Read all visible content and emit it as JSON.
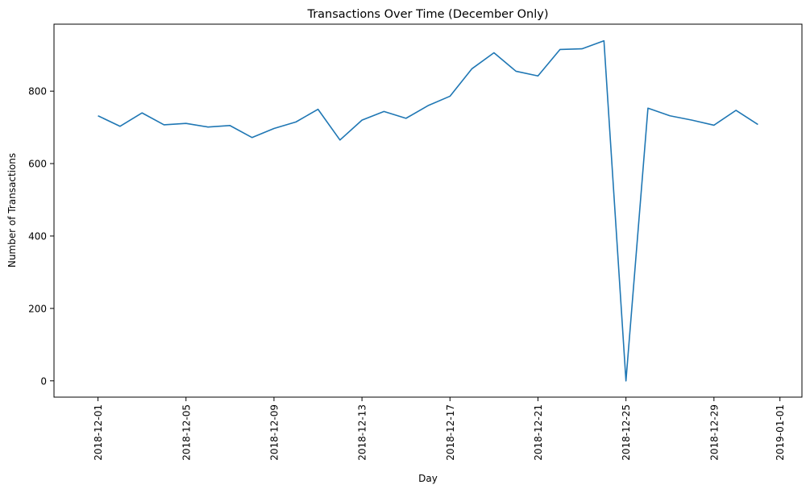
{
  "chart_data": {
    "type": "line",
    "title": "Transactions Over Time (December Only)",
    "xlabel": "Day",
    "ylabel": "Number of Transactions",
    "ylim": [
      -45,
      985
    ],
    "xlim": [
      "2018-11-29",
      "2019-01-02"
    ],
    "grid": false,
    "color": "#1f77b4",
    "x_ticks": [
      "2018-12-01",
      "2018-12-05",
      "2018-12-09",
      "2018-12-13",
      "2018-12-17",
      "2018-12-21",
      "2018-12-25",
      "2018-12-29",
      "2019-01-01"
    ],
    "y_ticks": [
      0,
      200,
      400,
      600,
      800
    ],
    "series": [
      {
        "x": [
          "2018-12-01",
          "2018-12-02",
          "2018-12-03",
          "2018-12-04",
          "2018-12-05",
          "2018-12-06",
          "2018-12-07",
          "2018-12-08",
          "2018-12-09",
          "2018-12-10",
          "2018-12-11",
          "2018-12-12",
          "2018-12-13",
          "2018-12-14",
          "2018-12-15",
          "2018-12-16",
          "2018-12-17",
          "2018-12-18",
          "2018-12-19",
          "2018-12-20",
          "2018-12-21",
          "2018-12-22",
          "2018-12-23",
          "2018-12-24",
          "2018-12-25",
          "2018-12-26",
          "2018-12-27",
          "2018-12-28",
          "2018-12-29",
          "2018-12-30",
          "2018-12-31"
        ],
        "values": [
          732,
          703,
          740,
          707,
          711,
          701,
          705,
          672,
          697,
          715,
          750,
          665,
          720,
          744,
          725,
          760,
          786,
          862,
          906,
          855,
          842,
          915,
          917,
          939,
          0,
          753,
          732,
          720,
          706,
          747,
          708
        ]
      }
    ]
  }
}
